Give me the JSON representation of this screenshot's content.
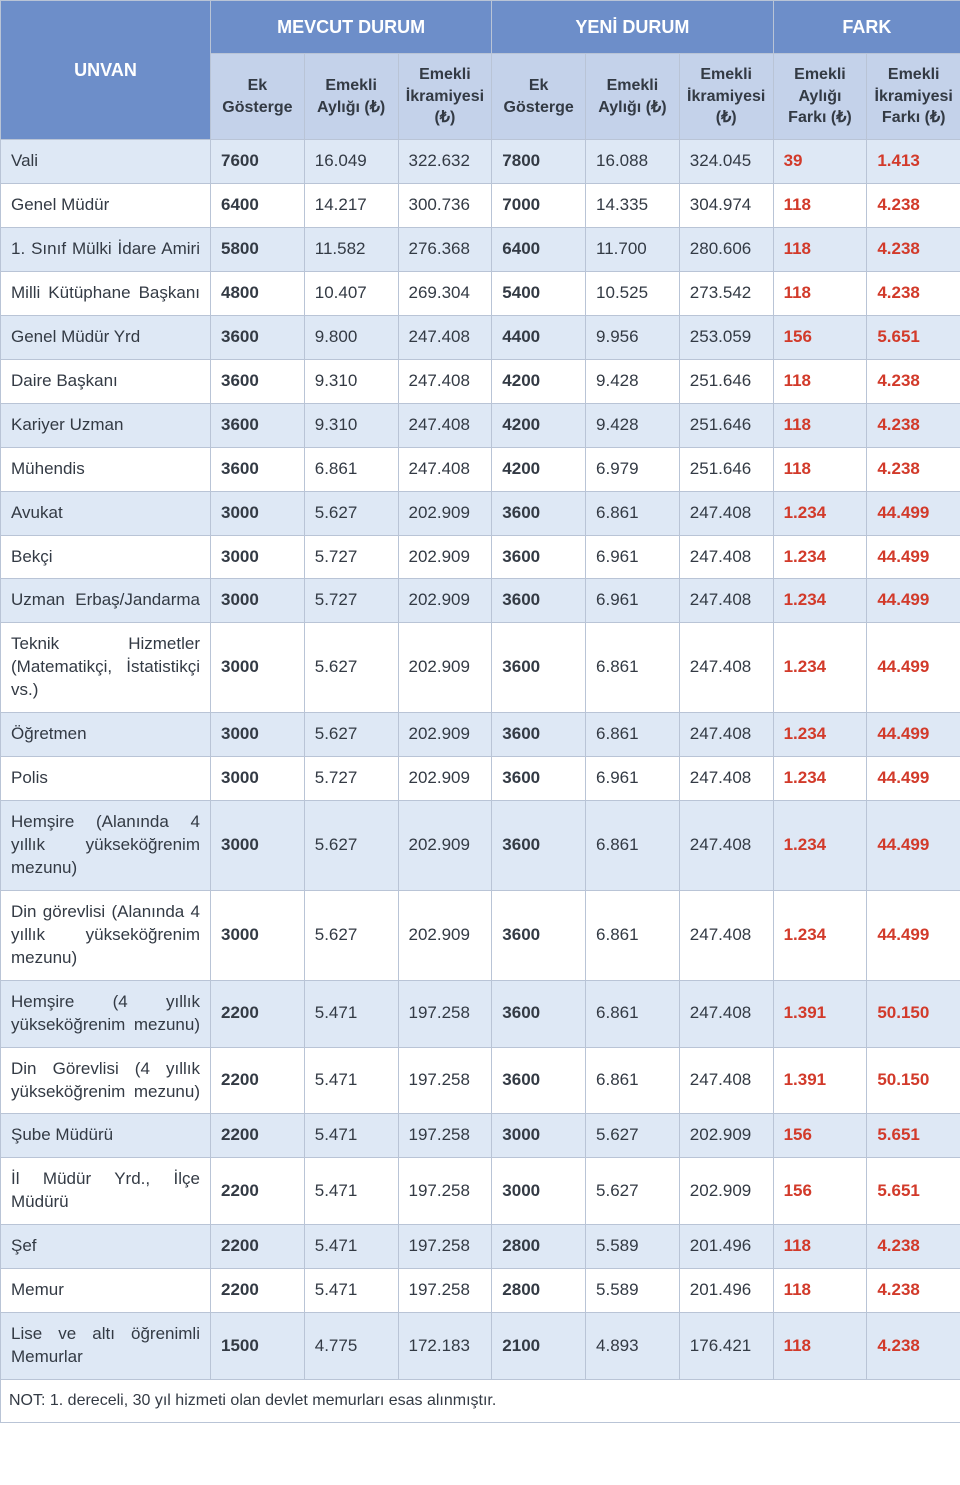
{
  "headers": {
    "unvan": "UNVAN",
    "group1": "MEVCUT DURUM",
    "group2": "YENİ DURUM",
    "group3": "FARK",
    "sub": {
      "ek": "Ek Gösterge",
      "aylik": "Emekli Aylığı (₺)",
      "ikramiye": "Emekli İkramiyesi (₺)",
      "aylik_fark": "Emekli Aylığı Farkı (₺)",
      "ikramiye_fark": "Emekli İkramiyesi Farkı (₺)"
    }
  },
  "rows": [
    {
      "t": "Vali",
      "single": true,
      "m_ek": "7600",
      "m_a": "16.049",
      "m_i": "322.632",
      "y_ek": "7800",
      "y_a": "16.088",
      "y_i": "324.045",
      "f_a": "39",
      "f_i": "1.413"
    },
    {
      "t": "Genel Müdür",
      "single": true,
      "m_ek": "6400",
      "m_a": "14.217",
      "m_i": "300.736",
      "y_ek": "7000",
      "y_a": "14.335",
      "y_i": "304.974",
      "f_a": "118",
      "f_i": "4.238"
    },
    {
      "t": "1. Sınıf Mülki İdare Amiri",
      "m_ek": "5800",
      "m_a": "11.582",
      "m_i": "276.368",
      "y_ek": "6400",
      "y_a": "11.700",
      "y_i": "280.606",
      "f_a": "118",
      "f_i": "4.238"
    },
    {
      "t": "Milli Kütüphane Başkanı",
      "m_ek": "4800",
      "m_a": "10.407",
      "m_i": "269.304",
      "y_ek": "5400",
      "y_a": "10.525",
      "y_i": "273.542",
      "f_a": "118",
      "f_i": "4.238"
    },
    {
      "t": "Genel Müdür Yrd",
      "single": true,
      "m_ek": "3600",
      "m_a": "9.800",
      "m_i": "247.408",
      "y_ek": "4400",
      "y_a": "9.956",
      "y_i": "253.059",
      "f_a": "156",
      "f_i": "5.651"
    },
    {
      "t": "Daire Başkanı",
      "single": true,
      "m_ek": "3600",
      "m_a": "9.310",
      "m_i": "247.408",
      "y_ek": "4200",
      "y_a": "9.428",
      "y_i": "251.646",
      "f_a": "118",
      "f_i": "4.238"
    },
    {
      "t": "Kariyer Uzman",
      "single": true,
      "m_ek": "3600",
      "m_a": "9.310",
      "m_i": "247.408",
      "y_ek": "4200",
      "y_a": "9.428",
      "y_i": "251.646",
      "f_a": "118",
      "f_i": "4.238"
    },
    {
      "t": "Mühendis",
      "single": true,
      "m_ek": "3600",
      "m_a": "6.861",
      "m_i": "247.408",
      "y_ek": "4200",
      "y_a": "6.979",
      "y_i": "251.646",
      "f_a": "118",
      "f_i": "4.238"
    },
    {
      "t": "Avukat",
      "single": true,
      "m_ek": "3000",
      "m_a": "5.627",
      "m_i": "202.909",
      "y_ek": "3600",
      "y_a": "6.861",
      "y_i": "247.408",
      "f_a": "1.234",
      "f_i": "44.499"
    },
    {
      "t": "Bekçi",
      "single": true,
      "m_ek": "3000",
      "m_a": "5.727",
      "m_i": "202.909",
      "y_ek": "3600",
      "y_a": "6.961",
      "y_i": "247.408",
      "f_a": "1.234",
      "f_i": "44.499"
    },
    {
      "t": "Uzman Erbaş/Jandarma",
      "m_ek": "3000",
      "m_a": "5.727",
      "m_i": "202.909",
      "y_ek": "3600",
      "y_a": "6.961",
      "y_i": "247.408",
      "f_a": "1.234",
      "f_i": "44.499"
    },
    {
      "t": "Teknik Hizmetler (Matematikçi, İstatistikçi vs.)",
      "m_ek": "3000",
      "m_a": "5.627",
      "m_i": "202.909",
      "y_ek": "3600",
      "y_a": "6.861",
      "y_i": "247.408",
      "f_a": "1.234",
      "f_i": "44.499"
    },
    {
      "t": "Öğretmen",
      "single": true,
      "m_ek": "3000",
      "m_a": "5.627",
      "m_i": "202.909",
      "y_ek": "3600",
      "y_a": "6.861",
      "y_i": "247.408",
      "f_a": "1.234",
      "f_i": "44.499"
    },
    {
      "t": "Polis",
      "single": true,
      "m_ek": "3000",
      "m_a": "5.727",
      "m_i": "202.909",
      "y_ek": "3600",
      "y_a": "6.961",
      "y_i": "247.408",
      "f_a": "1.234",
      "f_i": "44.499"
    },
    {
      "t": "Hemşire (Alanında 4 yıllık yükseköğrenim mezunu)",
      "m_ek": "3000",
      "m_a": "5.627",
      "m_i": "202.909",
      "y_ek": "3600",
      "y_a": "6.861",
      "y_i": "247.408",
      "f_a": "1.234",
      "f_i": "44.499"
    },
    {
      "t": "Din görevlisi (Alanında 4 yıllık yükseköğrenim mezunu)",
      "m_ek": "3000",
      "m_a": "5.627",
      "m_i": "202.909",
      "y_ek": "3600",
      "y_a": "6.861",
      "y_i": "247.408",
      "f_a": "1.234",
      "f_i": "44.499"
    },
    {
      "t": "Hemşire (4 yıllık yükseköğrenim mezunu)",
      "m_ek": "2200",
      "m_a": "5.471",
      "m_i": "197.258",
      "y_ek": "3600",
      "y_a": "6.861",
      "y_i": "247.408",
      "f_a": "1.391",
      "f_i": "50.150"
    },
    {
      "t": "Din Görevlisi (4 yıllık yükseköğrenim mezunu)",
      "m_ek": "2200",
      "m_a": "5.471",
      "m_i": "197.258",
      "y_ek": "3600",
      "y_a": "6.861",
      "y_i": "247.408",
      "f_a": "1.391",
      "f_i": "50.150"
    },
    {
      "t": "Şube Müdürü",
      "single": true,
      "m_ek": "2200",
      "m_a": "5.471",
      "m_i": "197.258",
      "y_ek": "3000",
      "y_a": "5.627",
      "y_i": "202.909",
      "f_a": "156",
      "f_i": "5.651"
    },
    {
      "t": "İl Müdür Yrd., İlçe Müdürü",
      "m_ek": "2200",
      "m_a": "5.471",
      "m_i": "197.258",
      "y_ek": "3000",
      "y_a": "5.627",
      "y_i": "202.909",
      "f_a": "156",
      "f_i": "5.651"
    },
    {
      "t": "Şef",
      "single": true,
      "m_ek": "2200",
      "m_a": "5.471",
      "m_i": "197.258",
      "y_ek": "2800",
      "y_a": "5.589",
      "y_i": "201.496",
      "f_a": "118",
      "f_i": "4.238"
    },
    {
      "t": "Memur",
      "single": true,
      "m_ek": "2200",
      "m_a": "5.471",
      "m_i": "197.258",
      "y_ek": "2800",
      "y_a": "5.589",
      "y_i": "201.496",
      "f_a": "118",
      "f_i": "4.238"
    },
    {
      "t": "Lise ve altı öğrenimli Memurlar",
      "m_ek": "1500",
      "m_a": "4.775",
      "m_i": "172.183",
      "y_ek": "2100",
      "y_a": "4.893",
      "y_i": "176.421",
      "f_a": "118",
      "f_i": "4.238"
    }
  ],
  "footnote": "NOT: 1. dereceli, 30 yıl hizmeti olan devlet memurları esas alınmıştır.",
  "style": {
    "header_bg": "#6d8ec9",
    "subheader_bg": "#c4d2ea",
    "stripe_bg": "#dee8f5",
    "border_color": "#b9c4d6",
    "text_color": "#333a44",
    "red_color": "#d23a2a"
  }
}
